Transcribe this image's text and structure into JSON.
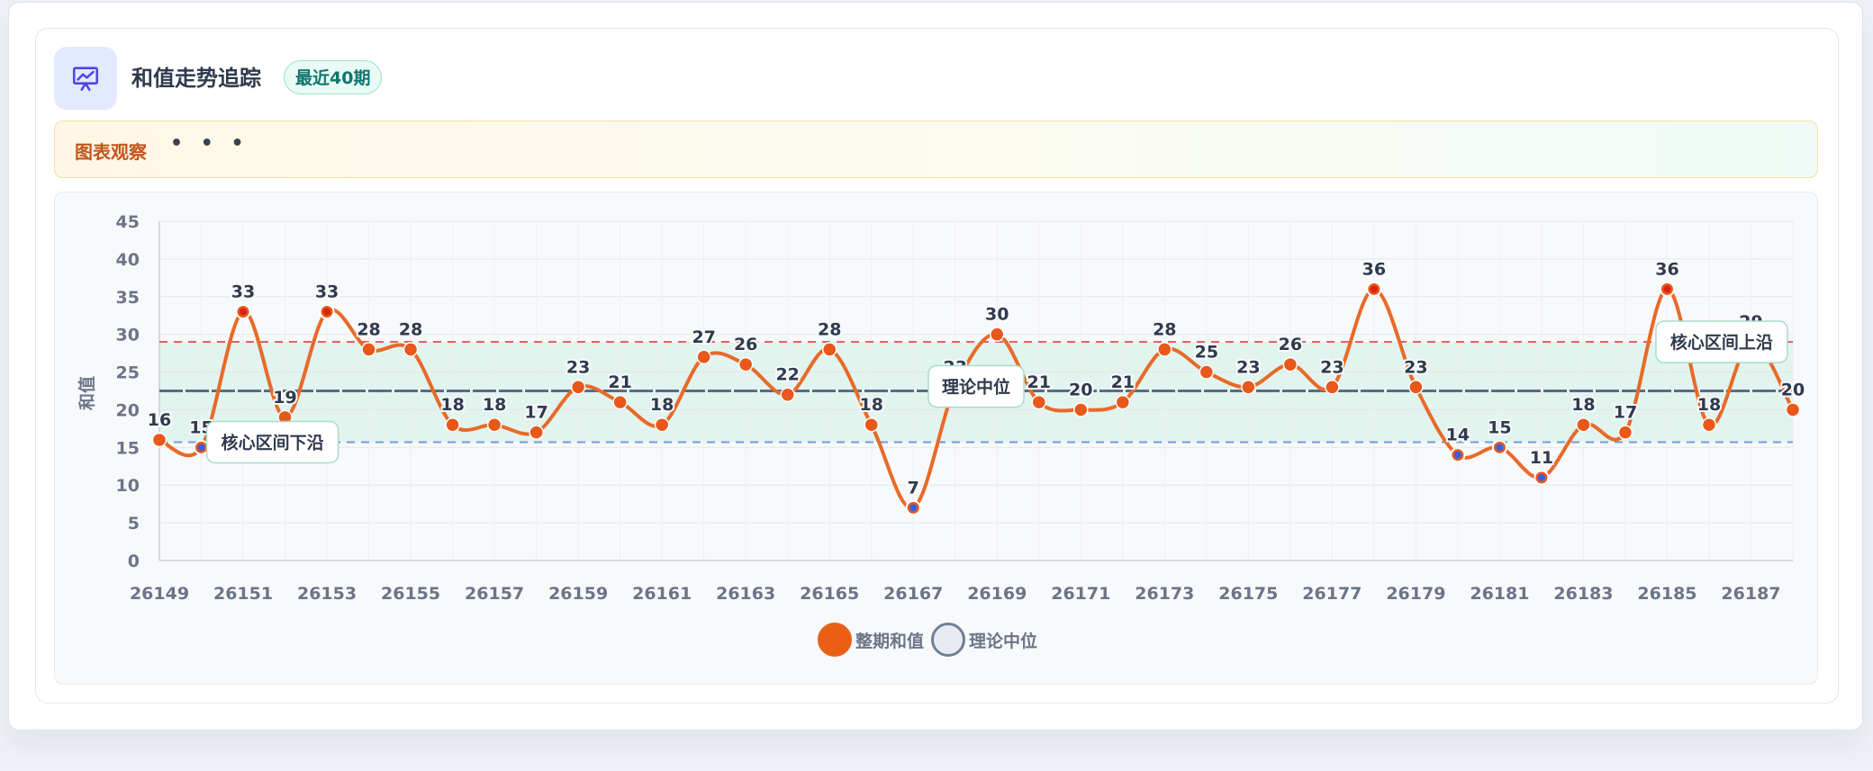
{
  "header": {
    "title": "和值走势追踪",
    "badge": "最近40期",
    "icon": "presentation-chart-icon"
  },
  "observation": {
    "label": "图表观察",
    "dots": "• • •"
  },
  "colors": {
    "line": "#e86a28",
    "point": "#e8581a",
    "low_point": "#3b5fd9",
    "median": "#5b6b86",
    "upper_band": "#e86060",
    "lower_band": "#6f9bdc",
    "band_fill": "#d9f2ea"
  },
  "legend": {
    "sum_label": "整期和值",
    "median_label": "理论中位"
  },
  "chart_data": {
    "type": "line",
    "ylabel": "和值",
    "xlabel": "",
    "ylim": [
      0,
      45
    ],
    "yticks": [
      0,
      5,
      10,
      15,
      20,
      25,
      30,
      35,
      40,
      45
    ],
    "x": [
      26149,
      26150,
      26151,
      26152,
      26153,
      26154,
      26155,
      26156,
      26157,
      26158,
      26159,
      26160,
      26161,
      26162,
      26163,
      26164,
      26165,
      26166,
      26167,
      26168,
      26169,
      26170,
      26171,
      26172,
      26173,
      26174,
      26175,
      26176,
      26177,
      26178,
      26179,
      26180,
      26181,
      26182,
      26183,
      26184,
      26185,
      26186,
      26187,
      26188
    ],
    "xtick_labels": [
      "26149",
      "26151",
      "26153",
      "26155",
      "26157",
      "26159",
      "26161",
      "26163",
      "26165",
      "26167",
      "26169",
      "26171",
      "26173",
      "26175",
      "26177",
      "26179",
      "26181",
      "26183",
      "26185",
      "26187"
    ],
    "series": [
      {
        "name": "整期和值",
        "values": [
          16,
          15,
          33,
          19,
          33,
          28,
          28,
          18,
          18,
          17,
          23,
          21,
          18,
          27,
          26,
          22,
          28,
          18,
          7,
          23,
          30,
          21,
          20,
          21,
          28,
          25,
          23,
          26,
          23,
          36,
          23,
          14,
          15,
          11,
          18,
          17,
          36,
          18,
          29,
          20
        ]
      }
    ],
    "median": {
      "label": "理论中位",
      "value": 22.5
    },
    "core_band": {
      "lower": 15.7,
      "upper": 29,
      "lower_label": "核心区间下沿",
      "upper_label": "核心区间上沿"
    },
    "grid": true,
    "legend_position": "bottom"
  }
}
